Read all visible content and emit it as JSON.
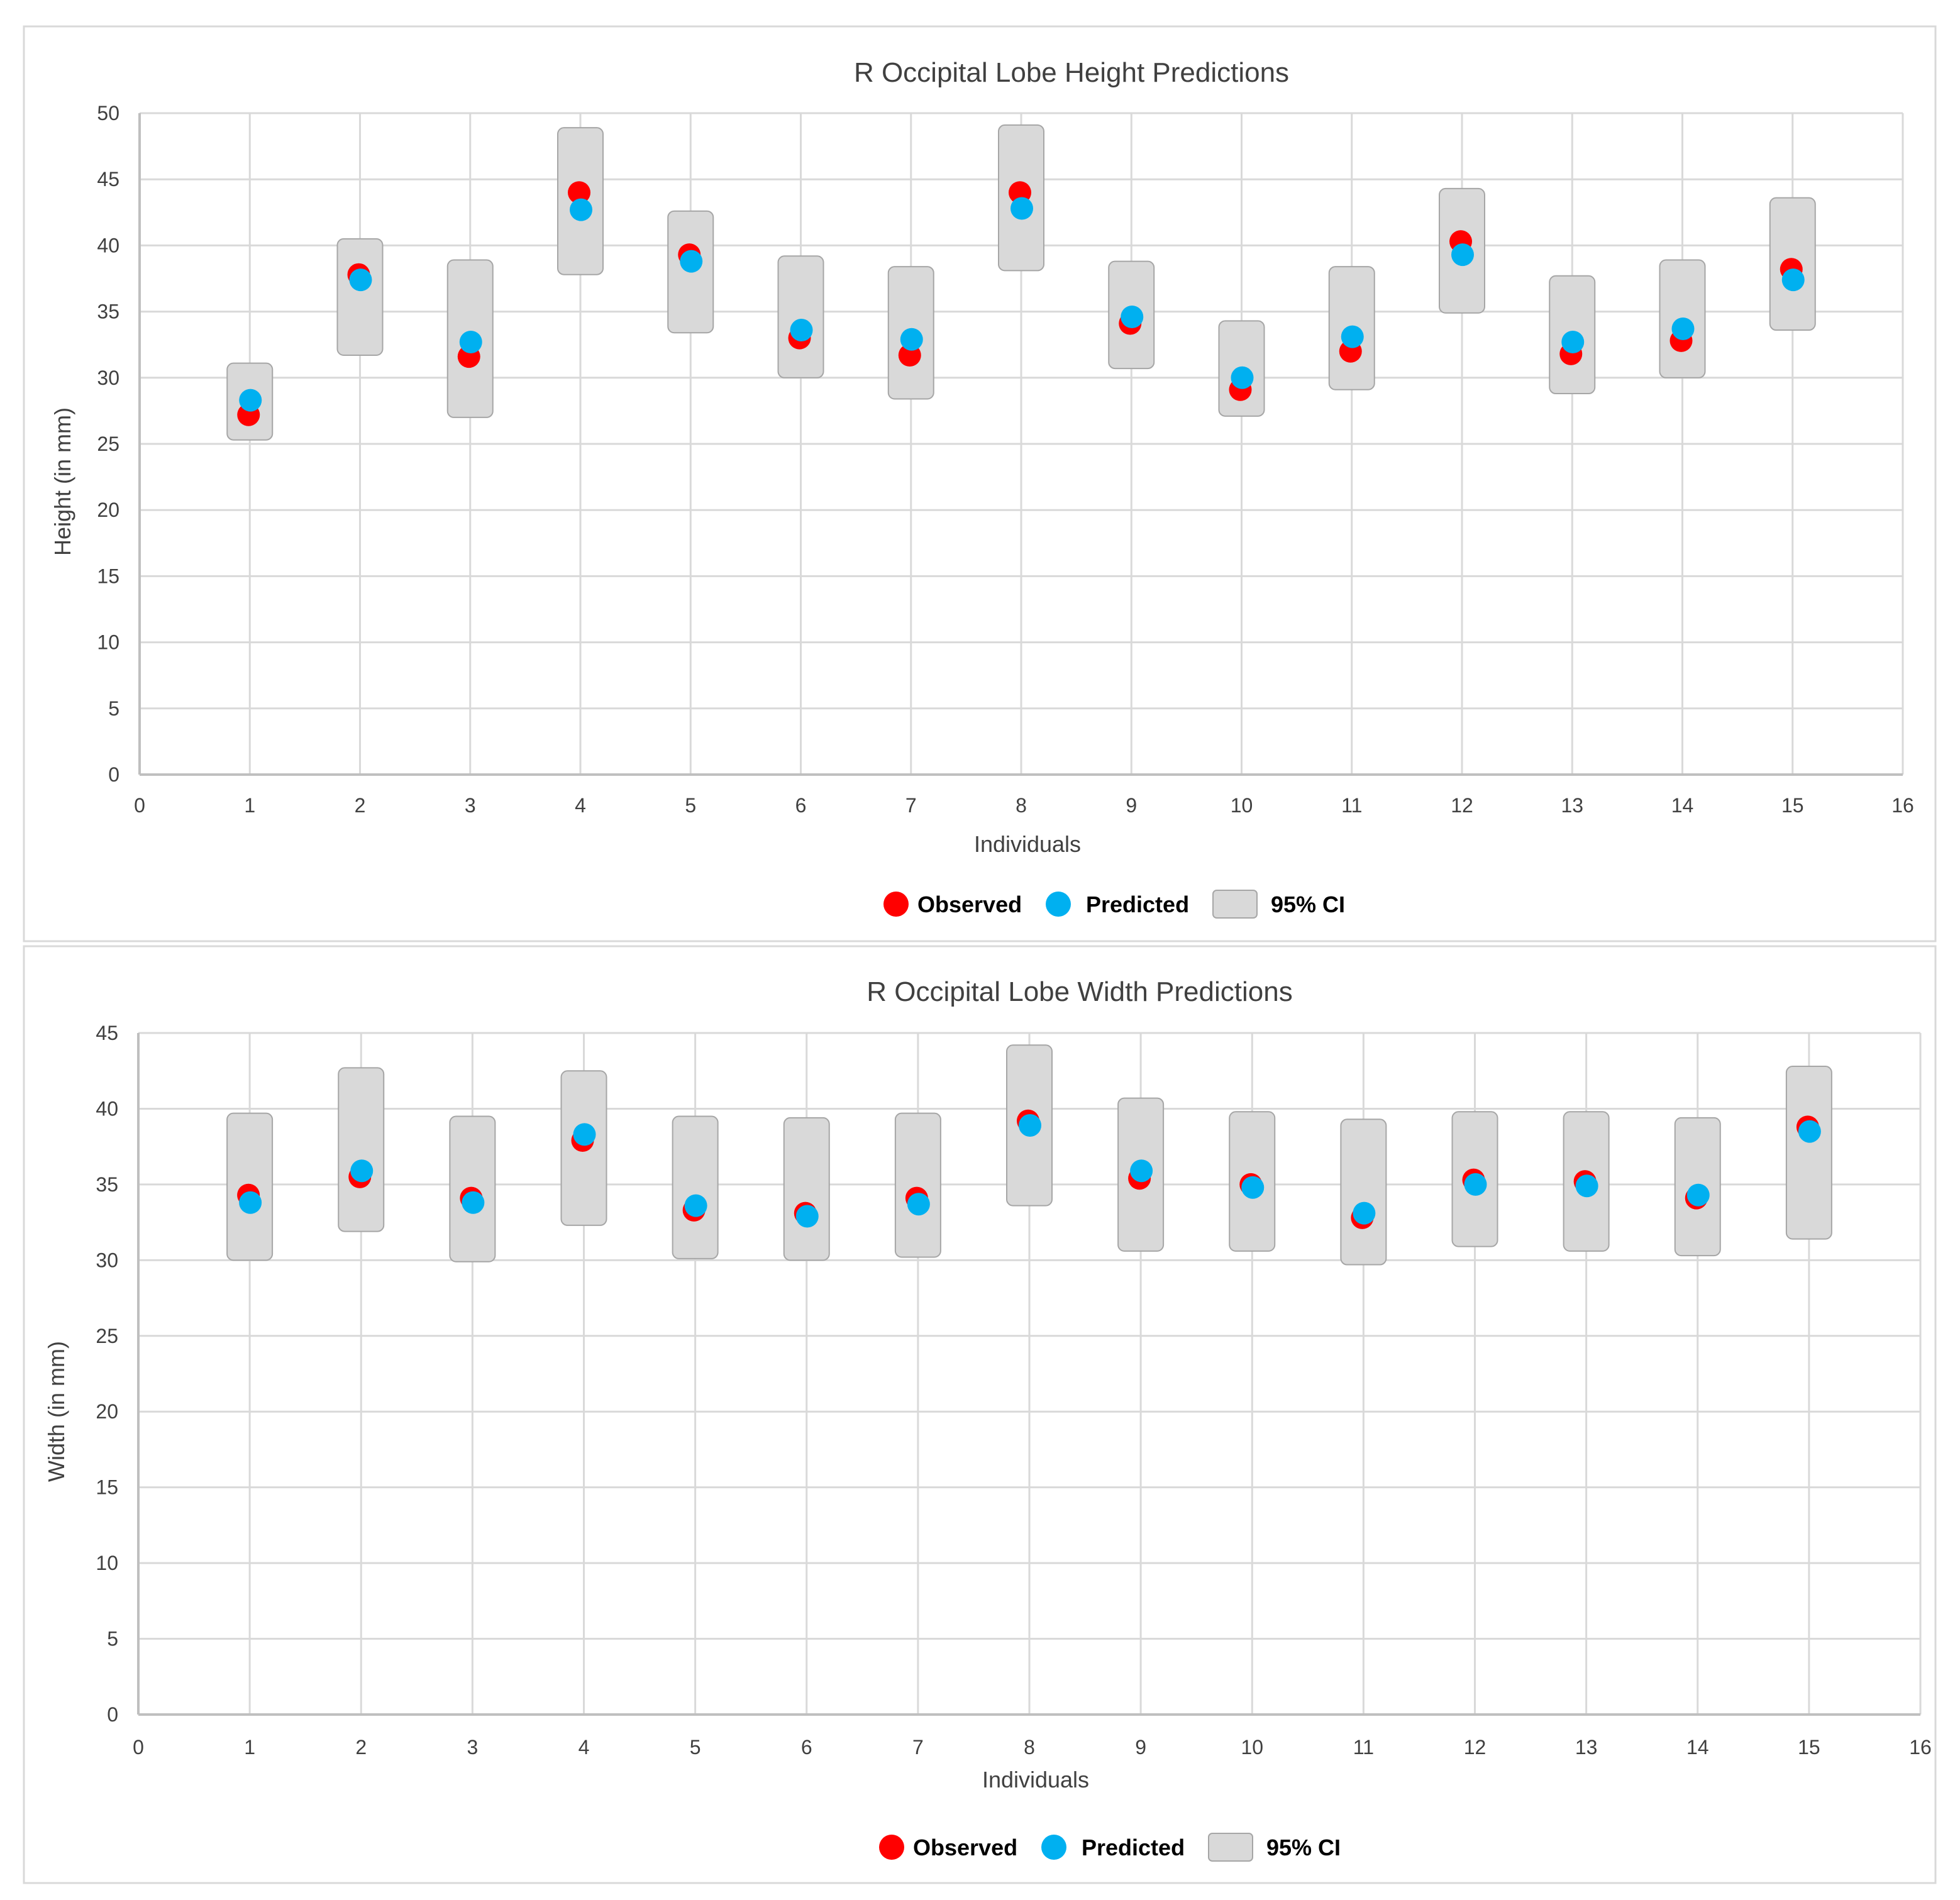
{
  "colors": {
    "observed": "#ff0000",
    "predicted": "#00b0f0",
    "ci_fill": "#d9d9d9",
    "ci_stroke": "#a6a6a6",
    "grid": "#d9d9d9",
    "axis": "#bfbfbf"
  },
  "chart_data": [
    {
      "type": "scatter",
      "title": "R Occipital Lobe Height Predictions",
      "xlabel": "Individuals",
      "ylabel": "Height (in mm)",
      "xlim": [
        0,
        16
      ],
      "ylim": [
        0,
        50
      ],
      "xticks": [
        0,
        1,
        2,
        3,
        4,
        5,
        6,
        7,
        8,
        9,
        10,
        11,
        12,
        13,
        14,
        15,
        16
      ],
      "yticks": [
        0,
        5,
        10,
        15,
        20,
        25,
        30,
        35,
        40,
        45,
        50
      ],
      "grid": true,
      "legend_position": "bottom",
      "legend": [
        "Observed",
        "Predicted",
        "95% CI"
      ],
      "x": [
        1,
        2,
        3,
        4,
        5,
        6,
        7,
        8,
        9,
        10,
        11,
        12,
        13,
        14,
        15
      ],
      "series": [
        {
          "name": "Observed",
          "values": [
            27.2,
            37.8,
            31.6,
            44.0,
            39.3,
            33.0,
            31.7,
            44.0,
            34.1,
            29.1,
            32.0,
            40.3,
            31.8,
            32.8,
            38.2
          ]
        },
        {
          "name": "Predicted",
          "values": [
            28.3,
            37.4,
            32.7,
            42.7,
            38.8,
            33.6,
            32.9,
            42.8,
            34.6,
            30.0,
            33.1,
            39.3,
            32.7,
            33.7,
            37.4
          ]
        }
      ],
      "ci": [
        [
          25.3,
          31.1
        ],
        [
          31.7,
          40.5
        ],
        [
          27.0,
          38.9
        ],
        [
          37.8,
          48.9
        ],
        [
          33.4,
          42.6
        ],
        [
          30.0,
          39.2
        ],
        [
          28.4,
          38.4
        ],
        [
          38.1,
          49.1
        ],
        [
          30.7,
          38.8
        ],
        [
          27.1,
          34.3
        ],
        [
          29.1,
          38.4
        ],
        [
          34.9,
          44.3
        ],
        [
          28.8,
          37.7
        ],
        [
          30.0,
          38.9
        ],
        [
          33.6,
          43.6
        ]
      ]
    },
    {
      "type": "scatter",
      "title": "R Occipital Lobe Width Predictions",
      "xlabel": "Individuals",
      "ylabel": "Width (in mm)",
      "xlim": [
        0,
        16
      ],
      "ylim": [
        0,
        45
      ],
      "xticks": [
        0,
        1,
        2,
        3,
        4,
        5,
        6,
        7,
        8,
        9,
        10,
        11,
        12,
        13,
        14,
        15,
        16
      ],
      "yticks": [
        0,
        5,
        10,
        15,
        20,
        25,
        30,
        35,
        40,
        45
      ],
      "grid": true,
      "legend_position": "bottom",
      "legend": [
        "Observed",
        "Predicted",
        "95% CI"
      ],
      "x": [
        1,
        2,
        3,
        4,
        5,
        6,
        7,
        8,
        9,
        10,
        11,
        12,
        13,
        14,
        15
      ],
      "series": [
        {
          "name": "Observed",
          "values": [
            34.3,
            35.5,
            34.1,
            37.9,
            33.3,
            33.1,
            34.1,
            39.2,
            35.4,
            35.0,
            32.8,
            35.3,
            35.2,
            34.1,
            38.8
          ]
        },
        {
          "name": "Predicted",
          "values": [
            33.8,
            35.9,
            33.8,
            38.3,
            33.6,
            32.9,
            33.7,
            38.9,
            35.9,
            34.8,
            33.1,
            35.0,
            34.9,
            34.3,
            38.5
          ]
        }
      ],
      "ci": [
        [
          30.0,
          39.7
        ],
        [
          31.9,
          42.7
        ],
        [
          29.9,
          39.5
        ],
        [
          32.3,
          42.5
        ],
        [
          30.1,
          39.5
        ],
        [
          30.0,
          39.4
        ],
        [
          30.2,
          39.7
        ],
        [
          33.6,
          44.2
        ],
        [
          30.6,
          40.7
        ],
        [
          30.6,
          39.8
        ],
        [
          29.7,
          39.3
        ],
        [
          30.9,
          39.8
        ],
        [
          30.6,
          39.8
        ],
        [
          30.3,
          39.4
        ],
        [
          31.4,
          42.8
        ]
      ]
    }
  ]
}
